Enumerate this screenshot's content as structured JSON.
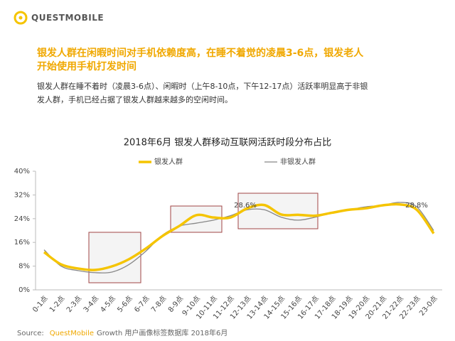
{
  "logo": "QUESTMOBILE",
  "headline": [
    "银发人群在闲暇时间对手机依赖度高，在睡不着觉的凌晨3-6点，银发老人",
    "开始使用手机打发时间"
  ],
  "paragraph": [
    "银发人群在睡不着时（凌晨3-6点）、闲暇时（上午8-10点，下午12-17点）活跃率明显高于非银",
    "发人群，手机已经占据了银发人群越来越多的空闲时间。"
  ],
  "chart_data": {
    "type": "line",
    "title": "2018年6月 银发人群移动互联网活跃时段分布占比",
    "categories": [
      "0-1点",
      "1-2点",
      "2-3点",
      "3-4点",
      "4-5点",
      "5-6点",
      "6-7点",
      "7-8点",
      "8-9点",
      "9-10点",
      "10-11点",
      "11-12点",
      "12-13点",
      "13-14点",
      "14-15点",
      "15-16点",
      "16-17点",
      "17-18点",
      "18-19点",
      "19-20点",
      "20-21点",
      "21-22点",
      "22-23点",
      "23-0点"
    ],
    "series": [
      {
        "name": "银发人群",
        "color": "#f5c400",
        "values": [
          12.7,
          8.6,
          7.2,
          6.7,
          7.9,
          10.3,
          13.9,
          18.2,
          21.6,
          25.2,
          24.4,
          24.4,
          27.5,
          28.6,
          25.4,
          25.3,
          25.0,
          26.0,
          27.0,
          27.5,
          28.5,
          28.8,
          27.0,
          19.0
        ]
      },
      {
        "name": "非银发人群",
        "color": "#888888",
        "values": [
          13.5,
          8.0,
          6.5,
          5.8,
          6.0,
          8.5,
          13.0,
          18.5,
          21.5,
          22.5,
          23.5,
          25.0,
          27.0,
          27.0,
          24.5,
          23.5,
          24.5,
          26.0,
          27.0,
          28.0,
          28.5,
          29.5,
          28.0,
          20.0
        ]
      }
    ],
    "ylim": [
      0,
      40
    ],
    "yticks": [
      {
        "value": 0,
        "label": "0%"
      },
      {
        "value": 8,
        "label": "8%"
      },
      {
        "value": 16,
        "label": "16%"
      },
      {
        "value": 24,
        "label": "24%"
      },
      {
        "value": 32,
        "label": "32%"
      },
      {
        "value": 40,
        "label": "40%"
      }
    ],
    "annotations": [
      "28.6%",
      "28.8%"
    ]
  },
  "source": {
    "label": "Source:",
    "brand": "QuestMobile",
    "text": "Growth 用户画像标签数据库 2018年6月"
  }
}
